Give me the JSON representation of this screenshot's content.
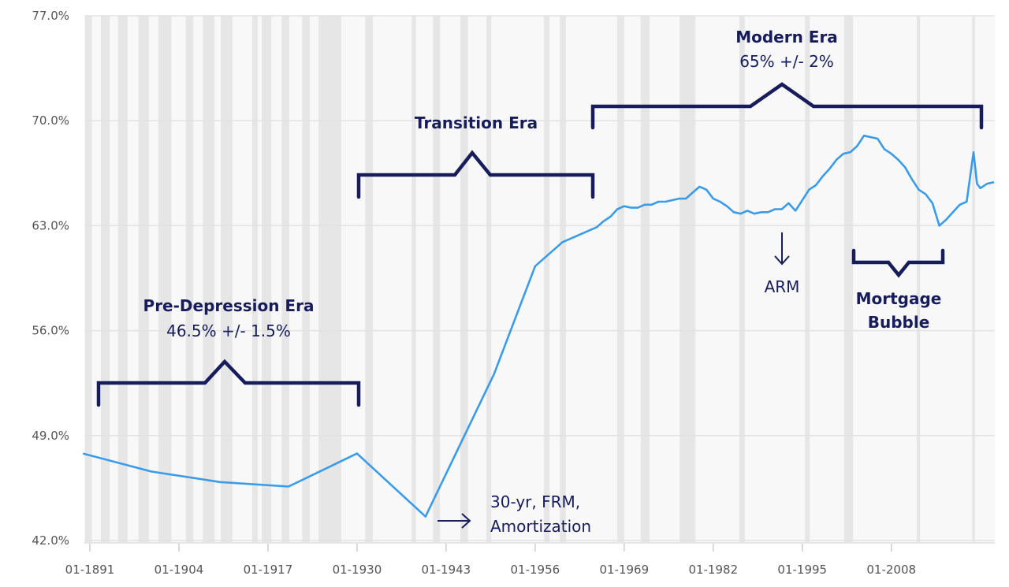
{
  "chart_data": {
    "type": "line",
    "title": "",
    "xlabel": "",
    "ylabel": "",
    "ylim": [
      42,
      77
    ],
    "xlim": [
      1890,
      2023.5
    ],
    "yticks": [
      "42.0%",
      "49.0%",
      "56.0%",
      "63.0%",
      "70.0%",
      "77.0%"
    ],
    "ytick_values": [
      42,
      49,
      56,
      63,
      70,
      77
    ],
    "xticks": [
      "01-1891",
      "01-1904",
      "01-1917",
      "01-1930",
      "01-1943",
      "01-1956",
      "01-1969",
      "01-1982",
      "01-1995",
      "01-2008"
    ],
    "xtick_values": [
      1891,
      1904,
      1917,
      1930,
      1943,
      1956,
      1969,
      1982,
      1995,
      2008
    ],
    "grid": true,
    "line_color": "#3a9be8",
    "band_color": "#e6e6e6",
    "series": [
      {
        "x": [
          1890,
          1900,
          1910,
          1920,
          1930,
          1940,
          1950,
          1956,
          1960,
          1965,
          1966,
          1967,
          1968,
          1969,
          1970,
          1971,
          1972,
          1973,
          1974,
          1975,
          1976,
          1977,
          1978,
          1979,
          1980,
          1981,
          1982,
          1983,
          1984,
          1985,
          1986,
          1987,
          1988,
          1989,
          1990,
          1991,
          1992,
          1993,
          1994,
          1995,
          1996,
          1997,
          1998,
          1999,
          2000,
          2001,
          2002,
          2003,
          2004,
          2005,
          2006,
          2007,
          2008,
          2009,
          2010,
          2011,
          2012,
          2013,
          2014,
          2015,
          2016,
          2017,
          2018,
          2019,
          2020,
          2020.5,
          2021,
          2022,
          2023
        ],
        "y": [
          47.8,
          46.6,
          45.9,
          45.6,
          47.8,
          43.6,
          53.1,
          60.3,
          61.9,
          62.9,
          63.3,
          63.6,
          64.1,
          64.3,
          64.2,
          64.2,
          64.4,
          64.4,
          64.6,
          64.6,
          64.7,
          64.8,
          64.8,
          65.2,
          65.6,
          65.4,
          64.8,
          64.6,
          64.3,
          63.9,
          63.8,
          64.0,
          63.8,
          63.9,
          63.9,
          64.1,
          64.1,
          64.5,
          64.0,
          64.7,
          65.4,
          65.7,
          66.3,
          66.8,
          67.4,
          67.8,
          67.9,
          68.3,
          69.0,
          68.9,
          68.8,
          68.1,
          67.8,
          67.4,
          66.9,
          66.1,
          65.4,
          65.1,
          64.5,
          63.0,
          63.4,
          63.9,
          64.4,
          64.6,
          67.9,
          65.8,
          65.5,
          65.8,
          65.9
        ]
      }
    ],
    "shaded_periods": [
      [
        1890.3,
        1891.3
      ],
      [
        1892.6,
        1893.9
      ],
      [
        1895.1,
        1896.5
      ],
      [
        1898.1,
        1899.6
      ],
      [
        1901.0,
        1902.9
      ],
      [
        1905.0,
        1906.1
      ],
      [
        1907.5,
        1909.2
      ],
      [
        1910.1,
        1911.8
      ],
      [
        1914.7,
        1915.5
      ],
      [
        1916.1,
        1917.5
      ],
      [
        1919.0,
        1920.1
      ],
      [
        1922.0,
        1923.1
      ],
      [
        1924.4,
        1927.7
      ],
      [
        1931.2,
        1932.3
      ],
      [
        1938.0,
        1938.6
      ],
      [
        1941.1,
        1942.1
      ],
      [
        1945.1,
        1946.2
      ],
      [
        1948.9,
        1949.6
      ],
      [
        1957.3,
        1958.1
      ],
      [
        1959.6,
        1960.5
      ],
      [
        1968.0,
        1969.0
      ],
      [
        1971.4,
        1972.7
      ],
      [
        1977.1,
        1979.4
      ],
      [
        1985.8,
        1986.6
      ],
      [
        1995.4,
        1996.1
      ],
      [
        2001.1,
        2002.4
      ],
      [
        2011.7,
        2012.2
      ],
      [
        2019.8,
        2020.2
      ]
    ],
    "annotations": {
      "pre_depression_title": "Pre-Depression Era",
      "pre_depression_range": "46.5% +/- 1.5%",
      "transition_title": "Transition Era",
      "modern_title": "Modern Era",
      "modern_range": "65% +/- 2%",
      "arm": "ARM",
      "bubble_line1": "Mortgage",
      "bubble_line2": "Bubble",
      "frm_line1": "30-yr, FRM,",
      "frm_line2": "Amortization"
    }
  }
}
